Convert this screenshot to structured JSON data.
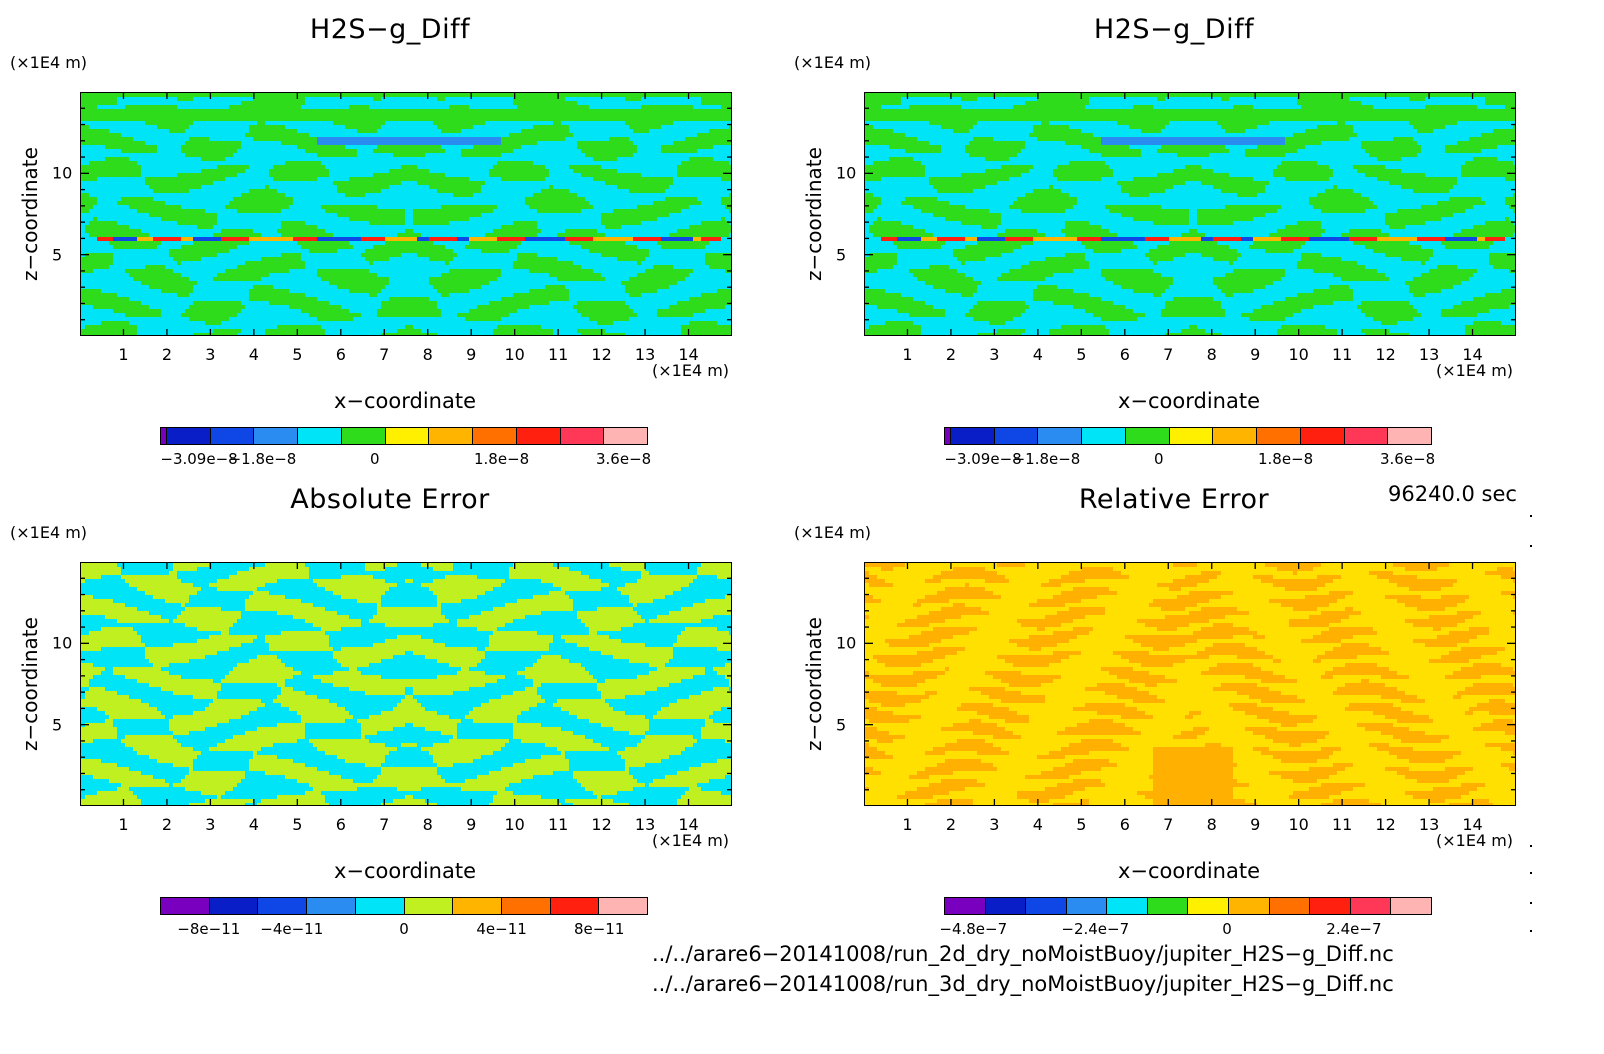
{
  "panels": [
    {
      "title": "H2S−g_Diff",
      "xunit": "(×1E4 m)",
      "yunit": "(×1E4 m)",
      "xlabel": "x−coordinate",
      "ylabel": "z−coordinate",
      "xticks": [
        "1",
        "2",
        "3",
        "4",
        "5",
        "6",
        "7",
        "8",
        "9",
        "10",
        "11",
        "12",
        "13",
        "14"
      ],
      "yticks": [
        "5",
        "10"
      ],
      "colorbar": {
        "colors": [
          "#7a00c0",
          "#0a1ec8",
          "#0f46e6",
          "#2a8cf0",
          "#00e4f8",
          "#2fdc1c",
          "#fff000",
          "#ffb400",
          "#ff7000",
          "#ff2010",
          "#ff3858",
          "#ffb4b4"
        ],
        "labels": [
          "−3.09e−8",
          "−1.8e−8",
          "0",
          "1.8e−8",
          "3.6e−8"
        ]
      },
      "fill": "diff"
    },
    {
      "title": "H2S−g_Diff",
      "xunit": "(×1E4 m)",
      "yunit": "(×1E4 m)",
      "xlabel": "x−coordinate",
      "ylabel": "z−coordinate",
      "xticks": [
        "1",
        "2",
        "3",
        "4",
        "5",
        "6",
        "7",
        "8",
        "9",
        "10",
        "11",
        "12",
        "13",
        "14"
      ],
      "yticks": [
        "5",
        "10"
      ],
      "colorbar": {
        "colors": [
          "#7a00c0",
          "#0a1ec8",
          "#0f46e6",
          "#2a8cf0",
          "#00e4f8",
          "#2fdc1c",
          "#fff000",
          "#ffb400",
          "#ff7000",
          "#ff2010",
          "#ff3858",
          "#ffb4b4"
        ],
        "labels": [
          "−3.09e−8",
          "−1.8e−8",
          "0",
          "1.8e−8",
          "3.6e−8"
        ]
      },
      "fill": "diff"
    },
    {
      "title": "Absolute Error",
      "xunit": "(×1E4 m)",
      "yunit": "(×1E4 m)",
      "xlabel": "x−coordinate",
      "ylabel": "z−coordinate",
      "xticks": [
        "1",
        "2",
        "3",
        "4",
        "5",
        "6",
        "7",
        "8",
        "9",
        "10",
        "11",
        "12",
        "13",
        "14"
      ],
      "yticks": [
        "5",
        "10"
      ],
      "colorbar": {
        "colors": [
          "#7a00c0",
          "#0a1ec8",
          "#0f46e6",
          "#2a8cf0",
          "#00e4f8",
          "#c0f020",
          "#ffb400",
          "#ff7000",
          "#ff2010",
          "#ffb4b4"
        ],
        "labels": [
          "−8e−11",
          "−4e−11",
          "0",
          "4e−11",
          "8e−11"
        ]
      },
      "fill": "abs"
    },
    {
      "title": "Relative Error",
      "xunit": "(×1E4 m)",
      "yunit": "(×1E4 m)",
      "xlabel": "x−coordinate",
      "ylabel": "z−coordinate",
      "xticks": [
        "1",
        "2",
        "3",
        "4",
        "5",
        "6",
        "7",
        "8",
        "9",
        "10",
        "11",
        "12",
        "13",
        "14"
      ],
      "yticks": [
        "5",
        "10"
      ],
      "colorbar": {
        "colors": [
          "#7a00c0",
          "#0a1ec8",
          "#0f46e6",
          "#2a8cf0",
          "#00e4f8",
          "#2fdc1c",
          "#fff000",
          "#ffb400",
          "#ff7000",
          "#ff2010",
          "#ff3858",
          "#ffb4b4"
        ],
        "labels": [
          "−4.8e−7",
          "−2.4e−7",
          "0",
          "2.4e−7"
        ]
      },
      "fill": "rel"
    }
  ],
  "time_label": "96240.0 sec",
  "file_paths": [
    "../../arare6−20141008/run_2d_dry_noMoistBuoy/jupiter_H2S−g_Diff.nc",
    "../../arare6−20141008/run_3d_dry_noMoistBuoy/jupiter_H2S−g_Diff.nc"
  ],
  "chart_data": [
    {
      "type": "heatmap",
      "title": "H2S−g_Diff",
      "xlabel": "x−coordinate",
      "ylabel": "z−coordinate",
      "x_unit": "(×1E4 m)",
      "z_unit": "(×1E4 m)",
      "xlim": [
        0,
        15
      ],
      "ylim": [
        0,
        15
      ],
      "color_range": [
        -3.09e-08,
        3.6e-08
      ],
      "colorbar_labels": [
        "−3.09e−8",
        "−1.8e−8",
        "0",
        "1.8e−8",
        "3.6e−8"
      ]
    },
    {
      "type": "heatmap",
      "title": "H2S−g_Diff",
      "xlabel": "x−coordinate",
      "ylabel": "z−coordinate",
      "x_unit": "(×1E4 m)",
      "z_unit": "(×1E4 m)",
      "xlim": [
        0,
        15
      ],
      "ylim": [
        0,
        15
      ],
      "color_range": [
        -3.09e-08,
        3.6e-08
      ],
      "colorbar_labels": [
        "−3.09e−8",
        "−1.8e−8",
        "0",
        "1.8e−8",
        "3.6e−8"
      ]
    },
    {
      "type": "heatmap",
      "title": "Absolute Error",
      "xlabel": "x−coordinate",
      "ylabel": "z−coordinate",
      "x_unit": "(×1E4 m)",
      "z_unit": "(×1E4 m)",
      "xlim": [
        0,
        15
      ],
      "ylim": [
        0,
        15
      ],
      "color_range": [
        -1e-10,
        1e-10
      ],
      "colorbar_labels": [
        "−8e−11",
        "−4e−11",
        "0",
        "4e−11",
        "8e−11"
      ]
    },
    {
      "type": "heatmap",
      "title": "Relative Error",
      "xlabel": "x−coordinate",
      "ylabel": "z−coordinate",
      "x_unit": "(×1E4 m)",
      "z_unit": "(×1E4 m)",
      "xlim": [
        0,
        15
      ],
      "ylim": [
        0,
        15
      ],
      "color_range": [
        -6e-07,
        4e-07
      ],
      "colorbar_labels": [
        "−4.8e−7",
        "−2.4e−7",
        "0",
        "2.4e−7"
      ]
    }
  ]
}
